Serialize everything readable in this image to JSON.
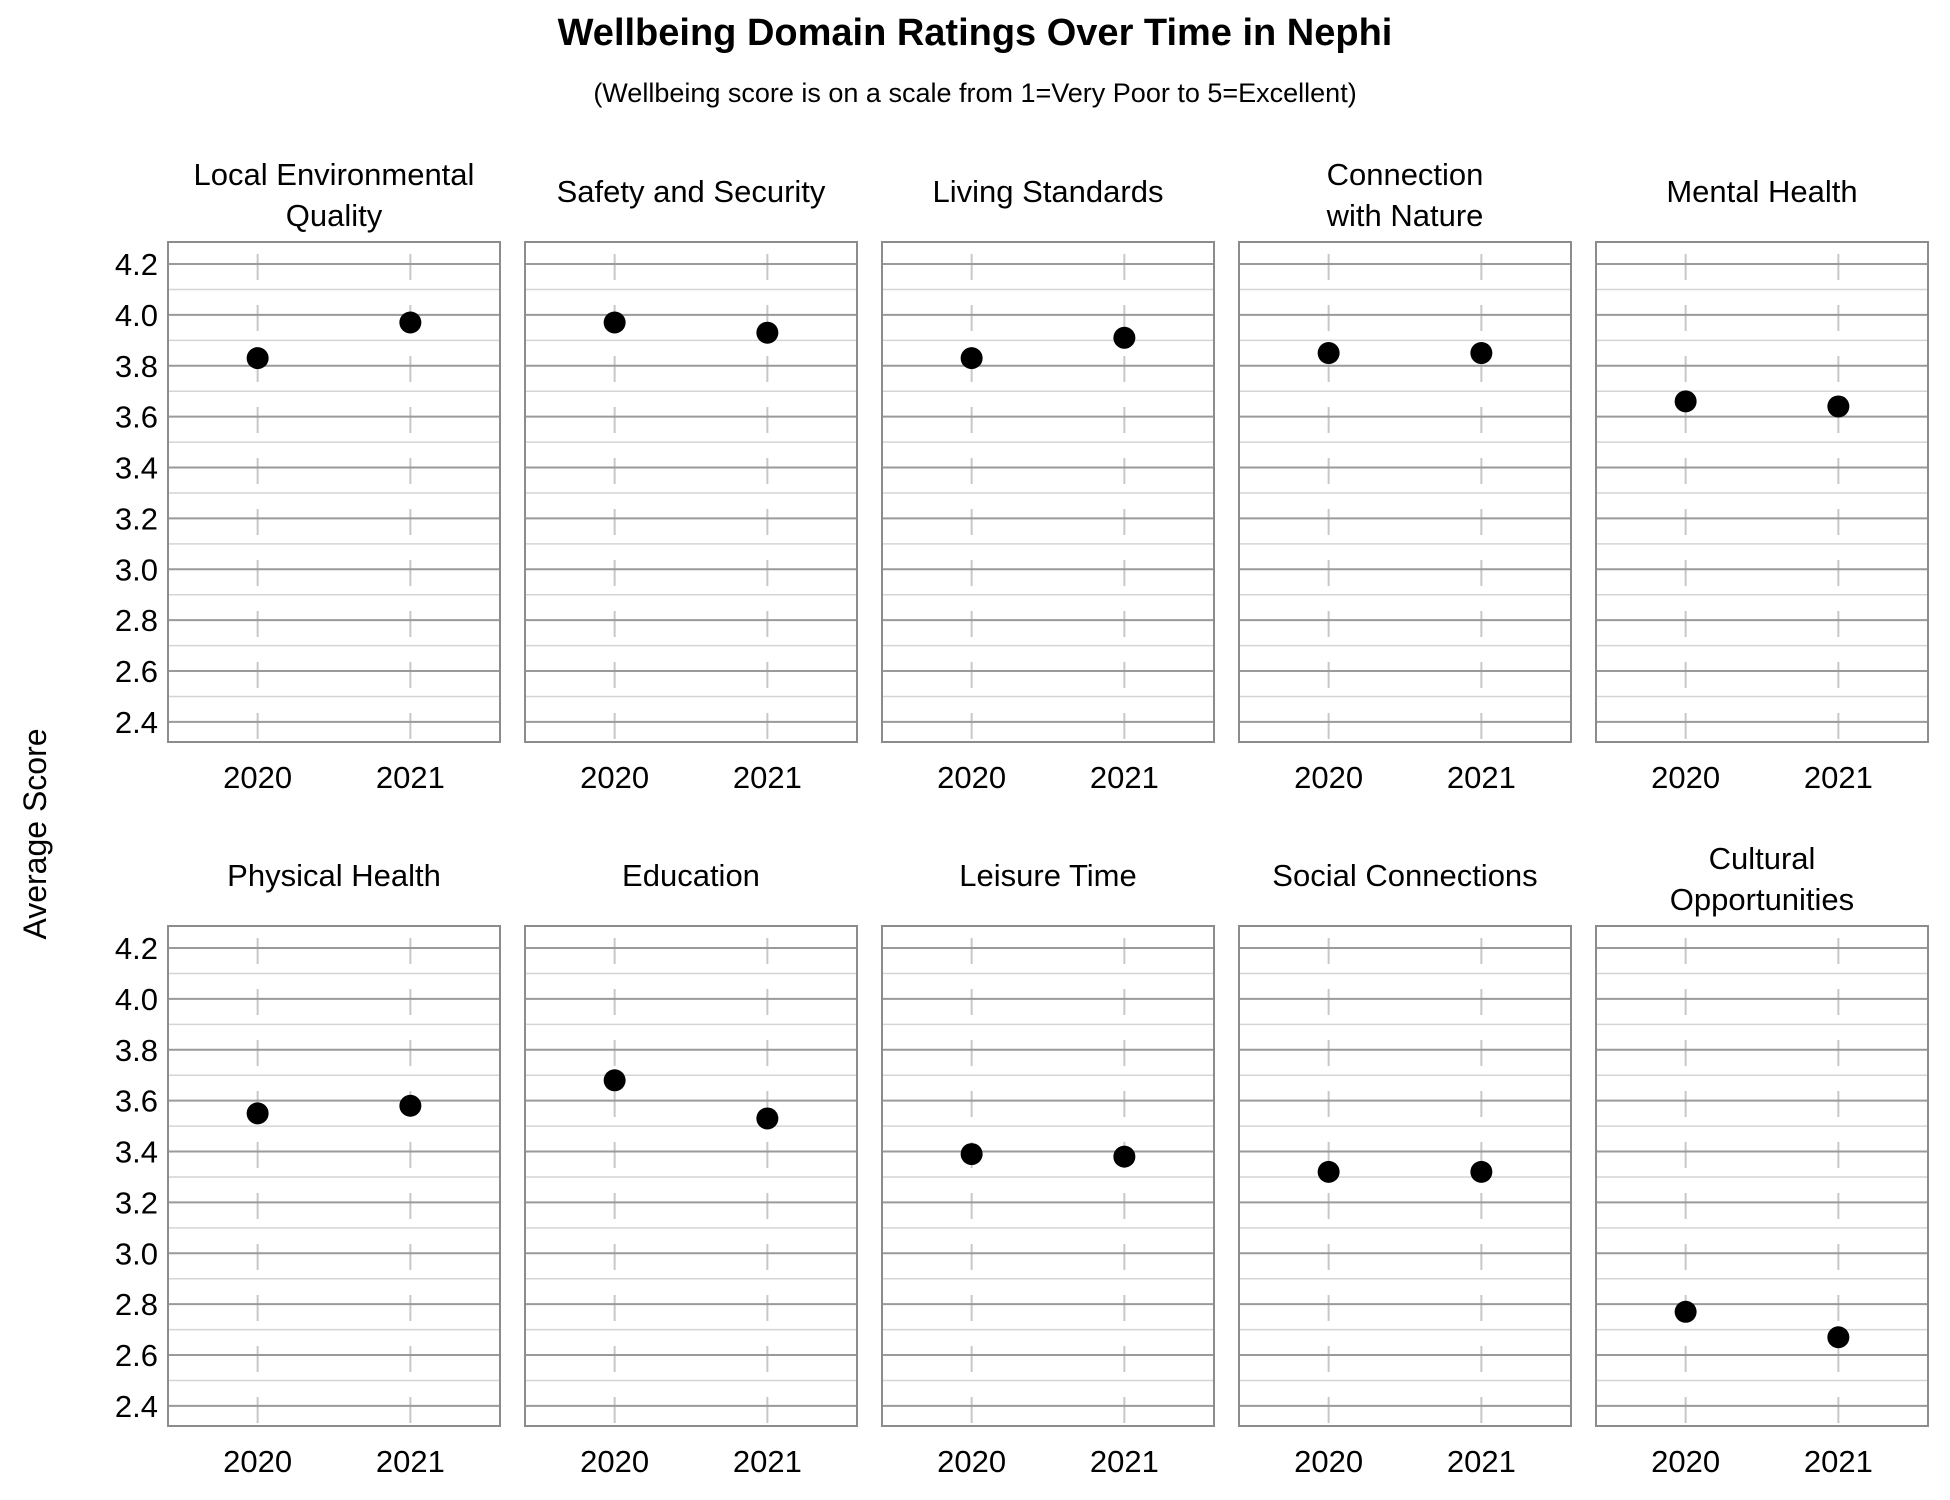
{
  "chart_data": {
    "type": "scatter",
    "title": "Wellbeing Domain Ratings Over Time in Nephi",
    "subtitle": "(Wellbeing score is on a scale from 1=Very Poor to 5=Excellent)",
    "ylabel": "Average Score",
    "xlabel": "",
    "ylim": [
      2.32,
      4.28
    ],
    "yticks": [
      "4.2",
      "4.0",
      "3.8",
      "3.6",
      "3.4",
      "3.2",
      "3.0",
      "2.8",
      "2.6",
      "2.4"
    ],
    "categories": [
      "2020",
      "2021"
    ],
    "marker_color": "#000000",
    "grid": true,
    "panels": [
      {
        "name": "Local Environmental Quality",
        "title_lines": [
          "Local Environmental",
          "Quality"
        ],
        "values": [
          3.83,
          3.97
        ]
      },
      {
        "name": "Safety and Security",
        "title_lines": [
          "Safety and Security"
        ],
        "values": [
          3.97,
          3.93
        ]
      },
      {
        "name": "Living Standards",
        "title_lines": [
          "Living Standards"
        ],
        "values": [
          3.83,
          3.91
        ]
      },
      {
        "name": "Connection with Nature",
        "title_lines": [
          "Connection",
          "with Nature"
        ],
        "values": [
          3.85,
          3.85
        ]
      },
      {
        "name": "Mental Health",
        "title_lines": [
          "Mental Health"
        ],
        "values": [
          3.66,
          3.64
        ]
      },
      {
        "name": "Physical Health",
        "title_lines": [
          "Physical Health"
        ],
        "values": [
          3.55,
          3.58
        ]
      },
      {
        "name": "Education",
        "title_lines": [
          "Education"
        ],
        "values": [
          3.68,
          3.53
        ]
      },
      {
        "name": "Leisure Time",
        "title_lines": [
          "Leisure Time"
        ],
        "values": [
          3.39,
          3.38
        ]
      },
      {
        "name": "Social Connections",
        "title_lines": [
          "Social Connections"
        ],
        "values": [
          3.32,
          3.32
        ]
      },
      {
        "name": "Cultural Opportunities",
        "title_lines": [
          "Cultural",
          "Opportunities"
        ],
        "values": [
          2.77,
          2.67
        ]
      }
    ]
  }
}
